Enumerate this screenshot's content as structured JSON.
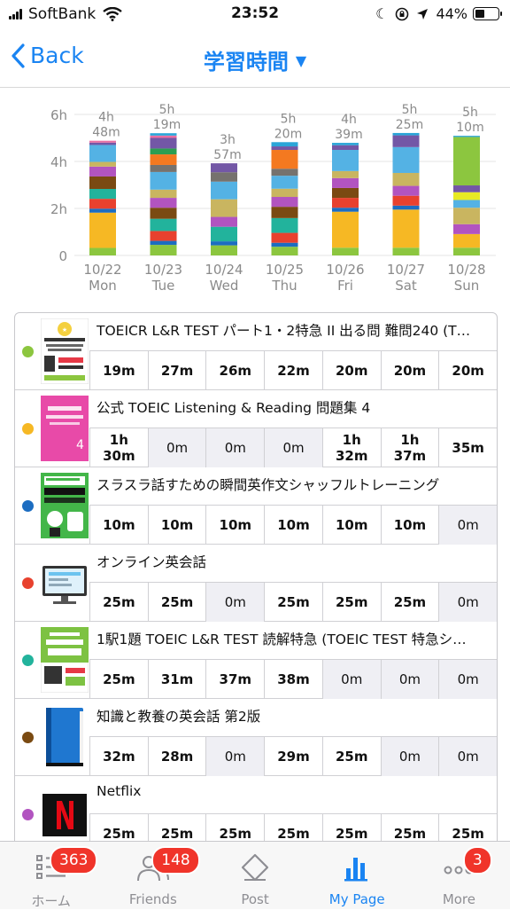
{
  "status_bar": {
    "carrier": "SoftBank",
    "time": "23:52",
    "battery_percent": "44%",
    "battery_level": 0.44
  },
  "nav": {
    "back_label": "Back",
    "title": "学習時間"
  },
  "chart_data": {
    "type": "bar",
    "stacked": true,
    "categories": [
      "10/22\nMon",
      "10/23\nTue",
      "10/24\nWed",
      "10/25\nThu",
      "10/26\nFri",
      "10/27\nSat",
      "10/28\nSun"
    ],
    "totals": [
      "4h\n48m",
      "5h\n19m",
      "3h\n57m",
      "5h\n20m",
      "4h\n39m",
      "5h\n25m",
      "5h\n10m"
    ],
    "ylim": [
      0,
      6
    ],
    "yticks": [
      "0",
      "2h",
      "4h",
      "6h"
    ],
    "series": [
      {
        "color": "#8cc63f",
        "values": [
          0.32,
          0.45,
          0.43,
          0.37,
          0.33,
          0.33,
          0.33
        ]
      },
      {
        "color": "#f6b824",
        "values": [
          1.5,
          0,
          0,
          0,
          1.53,
          1.62,
          0.58
        ]
      },
      {
        "color": "#1c6dc1",
        "values": [
          0.17,
          0.17,
          0.17,
          0.17,
          0.17,
          0.17,
          0
        ]
      },
      {
        "color": "#e8412e",
        "values": [
          0.42,
          0.42,
          0,
          0.42,
          0.42,
          0.42,
          0
        ]
      },
      {
        "color": "#22b39c",
        "values": [
          0.42,
          0.52,
          0.62,
          0.63,
          0,
          0,
          0
        ]
      },
      {
        "color": "#7a4a12",
        "values": [
          0.53,
          0.47,
          0,
          0.48,
          0.42,
          0,
          0
        ]
      },
      {
        "color": "#b254c0",
        "values": [
          0.42,
          0.42,
          0.42,
          0.42,
          0.42,
          0.42,
          0.42
        ]
      },
      {
        "color": "#c9b560",
        "values": [
          0.2,
          0.35,
          0.75,
          0.35,
          0.3,
          0.55,
          0.7
        ]
      },
      {
        "color": "#54b2e4",
        "values": [
          0.72,
          0.75,
          0.75,
          0.55,
          0.9,
          1.1,
          0.33
        ]
      },
      {
        "color": "#76726e",
        "values": [
          0,
          0.3,
          0.4,
          0.3,
          0,
          0,
          0
        ]
      },
      {
        "color": "#f47920",
        "values": [
          0,
          0.45,
          0,
          0.8,
          0,
          0,
          0
        ]
      },
      {
        "color": "#2c9e52",
        "values": [
          0,
          0.25,
          0,
          0,
          0,
          0,
          0
        ]
      },
      {
        "color": "#e8ea25",
        "values": [
          0,
          0,
          0,
          0,
          0,
          0,
          0.33
        ]
      },
      {
        "color": "#7357a6",
        "values": [
          0.1,
          0.45,
          0.38,
          0.15,
          0.2,
          0.5,
          0.29
        ]
      },
      {
        "color": "#e96fa3",
        "values": [
          0.08,
          0.1,
          0,
          0,
          0,
          0,
          0
        ]
      },
      {
        "color": "#8cc63f",
        "values": [
          0,
          0,
          0,
          0,
          0,
          0,
          2.06
        ]
      },
      {
        "color": "#2aa5d8",
        "values": [
          0,
          0.1,
          0,
          0.18,
          0.1,
          0.1,
          0.05
        ]
      }
    ]
  },
  "books": [
    {
      "title": "TOEICR L&R TEST パート1・2特急 II  出る問 難問240 (T…",
      "dot_color": "#8cc63f",
      "thumb": "toeic-part12-cover",
      "cells": [
        "19m",
        "27m",
        "26m",
        "22m",
        "20m",
        "20m",
        "20m"
      ]
    },
    {
      "title": "公式 TOEIC Listening & Reading 問題集 4",
      "dot_color": "#f6b824",
      "thumb": "official-toeic-cover",
      "cells": [
        "1h\n30m",
        "0m",
        "0m",
        "0m",
        "1h\n32m",
        "1h\n37m",
        "35m"
      ]
    },
    {
      "title": "スラスラ話すための瞬間英作文シャッフルトレーニング",
      "dot_color": "#1c6dc1",
      "thumb": "shunkan-eisakubun-cover",
      "cells": [
        "10m",
        "10m",
        "10m",
        "10m",
        "10m",
        "10m",
        "0m"
      ]
    },
    {
      "title": "オンライン英会話",
      "dot_color": "#e8412e",
      "thumb": "monitor-icon",
      "cells": [
        "25m",
        "25m",
        "0m",
        "25m",
        "25m",
        "25m",
        "0m"
      ]
    },
    {
      "title": "1駅1題 TOEIC L&R TEST 読解特急 (TOEIC TEST 特急シ…",
      "dot_color": "#22b39c",
      "thumb": "ichieki-ichidai-cover",
      "cells": [
        "25m",
        "31m",
        "37m",
        "38m",
        "0m",
        "0m",
        "0m"
      ]
    },
    {
      "title": "知識と教養の英会話 第2版",
      "dot_color": "#7a4a12",
      "thumb": "blue-book-icon",
      "cells": [
        "32m",
        "28m",
        "0m",
        "29m",
        "25m",
        "0m",
        "0m"
      ]
    },
    {
      "title": "Netflix",
      "dot_color": "#b254c0",
      "thumb": "netflix-logo",
      "cells": [
        "25m",
        "25m",
        "25m",
        "25m",
        "25m",
        "25m",
        "25m"
      ]
    }
  ],
  "tabs": [
    {
      "label": "ホーム",
      "icon": "home-list-icon",
      "badge": "363"
    },
    {
      "label": "Friends",
      "icon": "friends-icon",
      "badge": "148"
    },
    {
      "label": "Post",
      "icon": "post-pencil-icon",
      "badge": ""
    },
    {
      "label": "My Page",
      "icon": "bar-chart-icon",
      "badge": ""
    },
    {
      "label": "More",
      "icon": "more-dots-icon",
      "badge": "3"
    }
  ]
}
